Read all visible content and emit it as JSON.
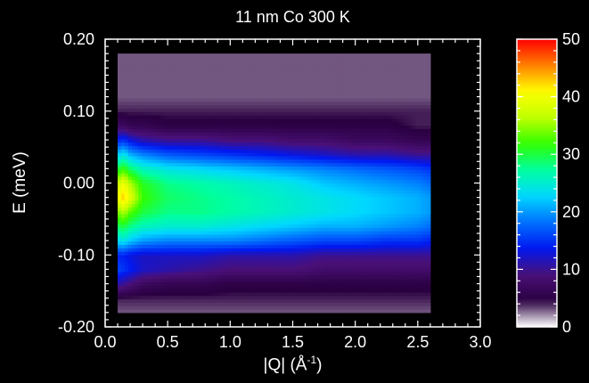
{
  "chart_data": {
    "type": "heatmap",
    "title": "11 nm Co 300 K",
    "xlabel_text": "|Q| (Å",
    "xlabel_sup": "-1",
    "xlabel_close": ")",
    "ylabel": "E (meV)",
    "xlim": [
      0.0,
      3.0
    ],
    "ylim": [
      -0.2,
      0.2
    ],
    "x_ticks": [
      {
        "value": 0.0,
        "label": "0.0"
      },
      {
        "value": 0.5,
        "label": "0.5"
      },
      {
        "value": 1.0,
        "label": "1.0"
      },
      {
        "value": 1.5,
        "label": "1.5"
      },
      {
        "value": 2.0,
        "label": "2.0"
      },
      {
        "value": 2.5,
        "label": "2.5"
      },
      {
        "value": 3.0,
        "label": "3.0"
      }
    ],
    "y_ticks": [
      {
        "value": 0.2,
        "label": "0.20"
      },
      {
        "value": 0.1,
        "label": "0.10"
      },
      {
        "value": 0.0,
        "label": "0.00"
      },
      {
        "value": -0.1,
        "label": "-0.10"
      },
      {
        "value": -0.2,
        "label": "-0.20"
      }
    ],
    "colorbar": {
      "range": [
        0,
        50
      ],
      "ticks": [
        {
          "value": 50,
          "label": "50"
        },
        {
          "value": 40,
          "label": "40"
        },
        {
          "value": 30,
          "label": "30"
        },
        {
          "value": 20,
          "label": "20"
        },
        {
          "value": 10,
          "label": "10"
        },
        {
          "value": 0,
          "label": "0"
        }
      ],
      "colors": [
        "#ffffff",
        "#2a0040",
        "#4a1078",
        "#0018f0",
        "#0070ff",
        "#00d8ff",
        "#00ffa0",
        "#30ff00",
        "#c0ff00",
        "#ffff00",
        "#ff8000",
        "#ff0000"
      ]
    },
    "data_extent": {
      "x": [
        0.1,
        2.6
      ],
      "y": [
        -0.18,
        0.18
      ]
    },
    "q_samples": [
      0.1,
      0.15,
      0.2,
      0.3,
      0.5,
      0.75,
      1.0,
      1.25,
      1.5,
      1.75,
      2.0,
      2.25,
      2.5,
      2.6
    ],
    "e_samples": [
      -0.18,
      -0.16,
      -0.14,
      -0.12,
      -0.1,
      -0.08,
      -0.06,
      -0.04,
      -0.02,
      0.0,
      0.02,
      0.04,
      0.06,
      0.08,
      0.1,
      0.12,
      0.14,
      0.16,
      0.18
    ],
    "intensity": [
      [
        3,
        4,
        11,
        16,
        14,
        23,
        29,
        34,
        40,
        37,
        30,
        22,
        14,
        7,
        4,
        3,
        3,
        3,
        3
      ],
      [
        3,
        4,
        10,
        15,
        14,
        24,
        30,
        36,
        43,
        40,
        32,
        24,
        15,
        7,
        4,
        3,
        3,
        3,
        3
      ],
      [
        3,
        4,
        9,
        14,
        13,
        22,
        28,
        33,
        39,
        36,
        29,
        21,
        13,
        6,
        4,
        3,
        3,
        3,
        3
      ],
      [
        3,
        4,
        7,
        12,
        12,
        20,
        26,
        30,
        32,
        31,
        26,
        19,
        11,
        6,
        4,
        3,
        3,
        3,
        3
      ],
      [
        3,
        4,
        6,
        11,
        12,
        19,
        25,
        28,
        29,
        28,
        24,
        17,
        10,
        5,
        4,
        3,
        3,
        3,
        3
      ],
      [
        3,
        4,
        6,
        10,
        12,
        19,
        25,
        28,
        28,
        27,
        23,
        16,
        10,
        5,
        4,
        3,
        3,
        3,
        3
      ],
      [
        3,
        4,
        5,
        9,
        11,
        19,
        24,
        27,
        27,
        26,
        22,
        15,
        9,
        5,
        4,
        3,
        3,
        3,
        3
      ],
      [
        3,
        4,
        5,
        9,
        11,
        18,
        23,
        26,
        26,
        25,
        21,
        14,
        9,
        5,
        4,
        3,
        3,
        3,
        3
      ],
      [
        3,
        4,
        5,
        9,
        11,
        17,
        22,
        25,
        25,
        24,
        20,
        13,
        8,
        5,
        4,
        3,
        3,
        3,
        3
      ],
      [
        3,
        4,
        5,
        8,
        10,
        16,
        21,
        24,
        24,
        22,
        19,
        12,
        8,
        5,
        4,
        3,
        3,
        3,
        3
      ],
      [
        3,
        4,
        5,
        8,
        10,
        16,
        21,
        23,
        23,
        21,
        18,
        11,
        7,
        5,
        4,
        3,
        3,
        3,
        3
      ],
      [
        3,
        4,
        5,
        8,
        10,
        15,
        20,
        22,
        22,
        20,
        17,
        11,
        7,
        5,
        4,
        3,
        3,
        3,
        3
      ],
      [
        3,
        4,
        5,
        8,
        10,
        15,
        19,
        21,
        21,
        19,
        16,
        10,
        6,
        4,
        4,
        3,
        3,
        3,
        3
      ],
      [
        3,
        4,
        5,
        8,
        10,
        14,
        18,
        20,
        20,
        18,
        15,
        10,
        6,
        4,
        4,
        3,
        3,
        3,
        3
      ]
    ]
  }
}
